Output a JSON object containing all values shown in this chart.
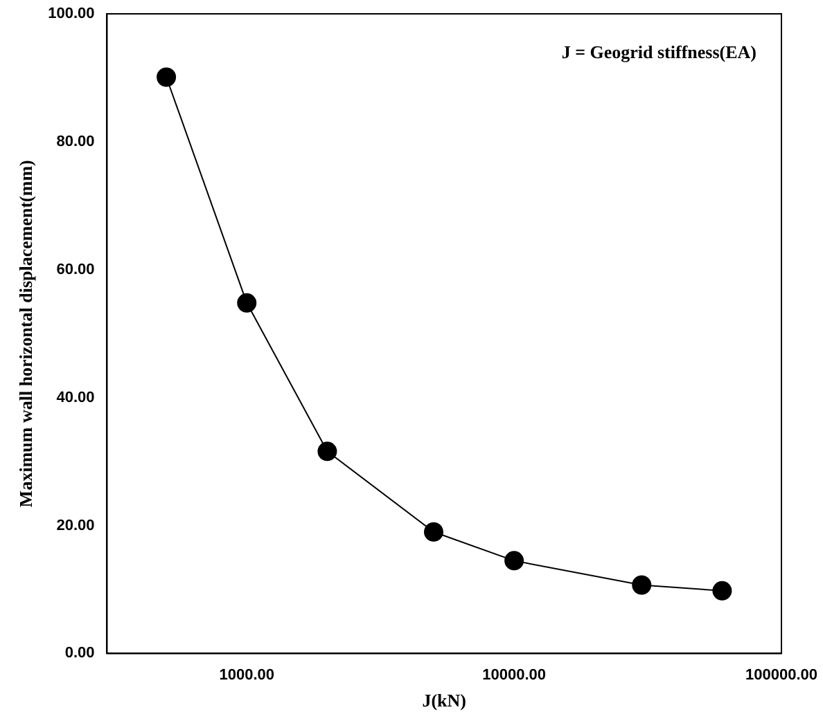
{
  "chart_data": {
    "type": "line",
    "xlabel": "J(kN)",
    "ylabel": "Maximum wall horizontal displacement(mm)",
    "annotations": [
      "J = Geogrid stiffness(EA)"
    ],
    "x": [
      500,
      1000,
      2000,
      5000,
      10000,
      30000,
      60000
    ],
    "series": [
      {
        "color": "#000000",
        "values": [
          90.1,
          54.8,
          31.6,
          19.0,
          14.5,
          10.7,
          9.8
        ]
      }
    ],
    "log": "x",
    "xlim": [
      300,
      100000
    ],
    "xticks": [
      {
        "value": 1000,
        "label": "1000.00"
      },
      {
        "value": 10000,
        "label": "10000.00"
      },
      {
        "value": 100000,
        "label": "100000.00"
      }
    ],
    "ylim": [
      0,
      100
    ],
    "yticks": [
      {
        "value": 0,
        "label": "0.00"
      },
      {
        "value": 20,
        "label": "20.00"
      },
      {
        "value": 40,
        "label": "40.00"
      },
      {
        "value": 60,
        "label": "60.00"
      },
      {
        "value": 80,
        "label": "80.00"
      },
      {
        "value": 100,
        "label": "100.00"
      }
    ],
    "grid": false,
    "legend": false,
    "marker": "circle",
    "line_style": "solid"
  }
}
